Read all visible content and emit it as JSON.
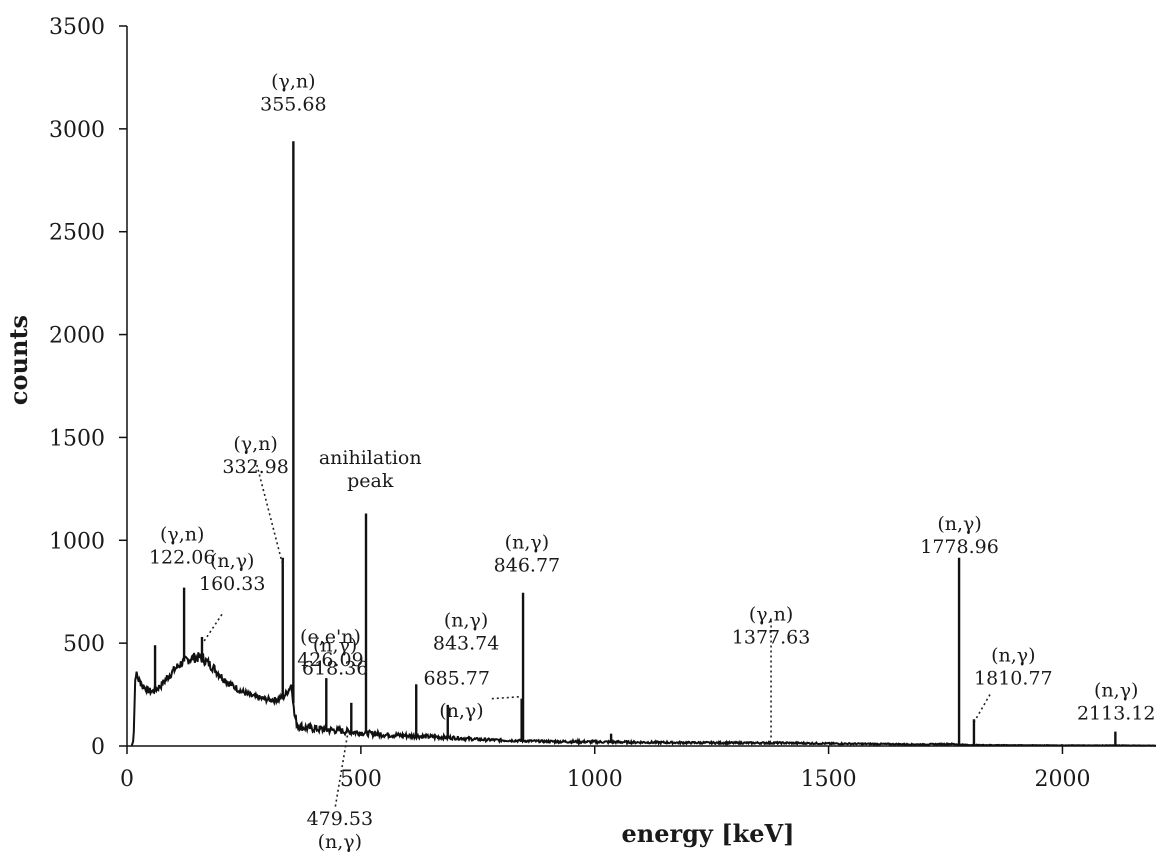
{
  "chart_data": {
    "type": "line",
    "title": "",
    "xlabel": "energy [keV]",
    "ylabel": "counts",
    "xlim": [
      0,
      2200
    ],
    "ylim": [
      0,
      3500
    ],
    "xticks": [
      0,
      500,
      1000,
      1500,
      2000
    ],
    "yticks": [
      0,
      500,
      1000,
      1500,
      2000,
      2500,
      3000,
      3500
    ],
    "grid": false,
    "legend": "none",
    "line_color": "#111111",
    "background": [
      [
        10,
        0
      ],
      [
        14,
        30
      ],
      [
        18,
        360
      ],
      [
        25,
        320
      ],
      [
        35,
        290
      ],
      [
        45,
        270
      ],
      [
        55,
        265
      ],
      [
        65,
        280
      ],
      [
        75,
        300
      ],
      [
        85,
        330
      ],
      [
        95,
        355
      ],
      [
        105,
        380
      ],
      [
        115,
        400
      ],
      [
        125,
        415
      ],
      [
        135,
        425
      ],
      [
        145,
        430
      ],
      [
        155,
        430
      ],
      [
        165,
        420
      ],
      [
        175,
        400
      ],
      [
        185,
        380
      ],
      [
        195,
        355
      ],
      [
        205,
        330
      ],
      [
        215,
        310
      ],
      [
        225,
        295
      ],
      [
        235,
        280
      ],
      [
        245,
        265
      ],
      [
        255,
        255
      ],
      [
        265,
        245
      ],
      [
        275,
        238
      ],
      [
        285,
        232
      ],
      [
        295,
        228
      ],
      [
        305,
        225
      ],
      [
        315,
        225
      ],
      [
        325,
        228
      ],
      [
        335,
        240
      ],
      [
        345,
        270
      ],
      [
        352,
        300
      ],
      [
        358,
        150
      ],
      [
        365,
        100
      ],
      [
        380,
        90
      ],
      [
        400,
        85
      ],
      [
        450,
        75
      ],
      [
        500,
        65
      ],
      [
        550,
        55
      ],
      [
        600,
        50
      ],
      [
        650,
        45
      ],
      [
        700,
        40
      ],
      [
        750,
        32
      ],
      [
        800,
        28
      ],
      [
        850,
        25
      ],
      [
        900,
        22
      ],
      [
        1000,
        20
      ],
      [
        1100,
        18
      ],
      [
        1200,
        16
      ],
      [
        1300,
        15
      ],
      [
        1400,
        15
      ],
      [
        1500,
        12
      ],
      [
        1600,
        10
      ],
      [
        1700,
        8
      ],
      [
        1760,
        10
      ],
      [
        1800,
        5
      ],
      [
        1900,
        4
      ],
      [
        2000,
        3
      ],
      [
        2100,
        3
      ],
      [
        2200,
        2
      ]
    ],
    "peaks": [
      {
        "energy": 60,
        "counts": 490
      },
      {
        "energy": 122.06,
        "counts": 770
      },
      {
        "energy": 160.33,
        "counts": 530
      },
      {
        "energy": 332.98,
        "counts": 915
      },
      {
        "energy": 355.68,
        "counts": 2940
      },
      {
        "energy": 426.09,
        "counts": 330
      },
      {
        "energy": 479.53,
        "counts": 210
      },
      {
        "energy": 511,
        "counts": 1130
      },
      {
        "energy": 618.36,
        "counts": 300
      },
      {
        "energy": 685.77,
        "counts": 200
      },
      {
        "energy": 843.74,
        "counts": 230
      },
      {
        "energy": 846.77,
        "counts": 745
      },
      {
        "energy": 1035,
        "counts": 60
      },
      {
        "energy": 1778.96,
        "counts": 915
      },
      {
        "energy": 1810.77,
        "counts": 130
      },
      {
        "energy": 2113.12,
        "counts": 70
      }
    ],
    "annotations": [
      {
        "lines": [
          "(γ,n)",
          "355.68"
        ],
        "x": 355.68,
        "y": 3200
      },
      {
        "lines": [
          "(γ,n)",
          "332.98"
        ],
        "x": 275,
        "y": 1440
      },
      {
        "lines": [
          "anihilation",
          "peak"
        ],
        "x": 520,
        "y": 1370
      },
      {
        "lines": [
          "(γ,n)",
          "122.06"
        ],
        "x": 118,
        "y": 1000
      },
      {
        "lines": [
          "(n,γ)",
          "160.33"
        ],
        "x": 225,
        "y": 870
      },
      {
        "lines": [
          "(n,γ)",
          "846.77"
        ],
        "x": 855,
        "y": 960
      },
      {
        "lines": [
          "(n,γ)",
          "1778.96"
        ],
        "x": 1780,
        "y": 1050
      },
      {
        "lines": [
          "(n,γ)",
          "843.74"
        ],
        "x": 725,
        "y": 580
      },
      {
        "lines": [
          "(e,e'n)",
          "426.09"
        ],
        "x": 435,
        "y": 500
      },
      {
        "lines": [
          "(n,γ)",
          "618.36"
        ],
        "x": 445,
        "y": 460
      },
      {
        "lines": [
          "685.77"
        ],
        "x": 705,
        "y": 300
      },
      {
        "lines": [
          "(n,γ)"
        ],
        "x": 715,
        "y": 140
      },
      {
        "lines": [
          "(γ,n)",
          "1377.63"
        ],
        "x": 1377,
        "y": 610
      },
      {
        "lines": [
          "(n,γ)",
          "1810.77"
        ],
        "x": 1895,
        "y": 410
      },
      {
        "lines": [
          "(n,γ)",
          "2113.12"
        ],
        "x": 2115,
        "y": 240
      },
      {
        "lines": [
          "479.53",
          "(n,γ)"
        ],
        "x": 455,
        "y": -385
      }
    ],
    "leaders": [
      {
        "from": [
          275,
          1390
        ],
        "to": [
          332.98,
          880
        ]
      },
      {
        "from": [
          203,
          640
        ],
        "to": [
          162,
          500
        ]
      },
      {
        "from": [
          780,
          230
        ],
        "to": [
          843,
          240
        ]
      },
      {
        "from": [
          1377,
          610
        ],
        "to": [
          1377,
          40
        ]
      },
      {
        "from": [
          1845,
          250
        ],
        "to": [
          1812,
          120
        ]
      },
      {
        "from": [
          473,
          75
        ],
        "to": [
          445,
          -300
        ]
      }
    ]
  }
}
